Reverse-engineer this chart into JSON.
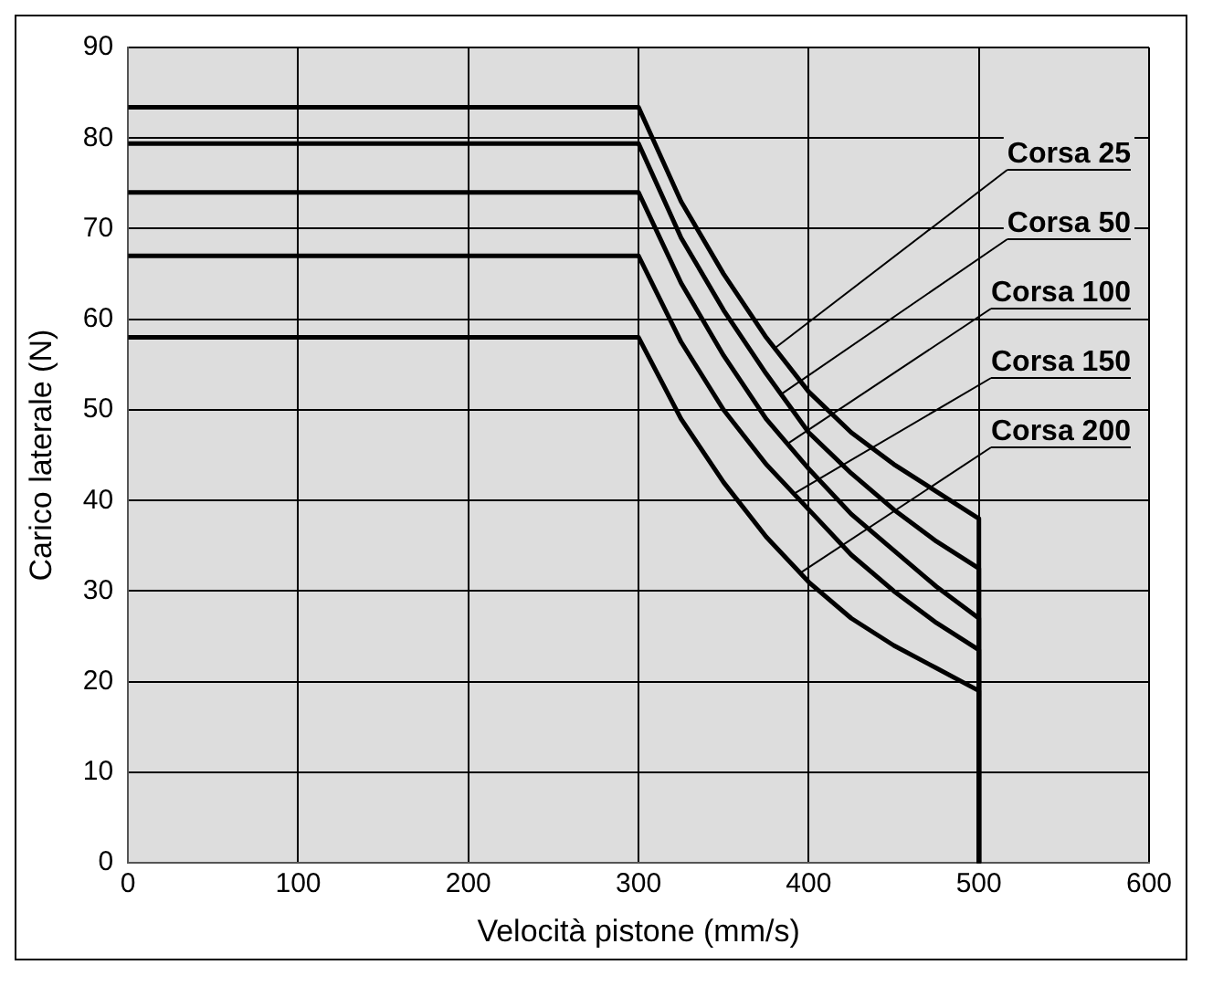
{
  "chart_data": {
    "type": "line",
    "xlabel": "Velocità pistone (mm/s)",
    "ylabel": "Carico laterale (N)",
    "x": [
      0,
      300,
      325,
      350,
      375,
      400,
      425,
      450,
      475,
      500,
      500
    ],
    "series": [
      {
        "name": "Corsa 25",
        "color": "#000000",
        "values": [
          83.4,
          83.4,
          73,
          65,
          58,
          52,
          47.5,
          44,
          41,
          38,
          0
        ]
      },
      {
        "name": "Corsa 50",
        "color": "#000000",
        "values": [
          79.4,
          79.4,
          69,
          61,
          54,
          47.5,
          43,
          39,
          35.5,
          32.5,
          0
        ]
      },
      {
        "name": "Corsa 100",
        "color": "#000000",
        "values": [
          74,
          74,
          64,
          56,
          49,
          43.5,
          38.5,
          34.5,
          30.5,
          27,
          0
        ]
      },
      {
        "name": "Corsa 150",
        "color": "#000000",
        "values": [
          67,
          67,
          57.5,
          50,
          44,
          39,
          34,
          30,
          26.5,
          23.5,
          0
        ]
      },
      {
        "name": "Corsa 200",
        "color": "#000000",
        "values": [
          58,
          58,
          49,
          42,
          36,
          31,
          27,
          24,
          21.5,
          19,
          0
        ]
      }
    ],
    "xlim": [
      0,
      600
    ],
    "xticks": [
      0,
      100,
      200,
      300,
      400,
      500,
      600
    ],
    "ylim": [
      0,
      90
    ],
    "yticks": [
      0,
      10,
      20,
      30,
      40,
      50,
      60,
      70,
      80,
      90
    ],
    "grid": true,
    "legend": "right",
    "marker": "none",
    "line_style": "solid"
  }
}
